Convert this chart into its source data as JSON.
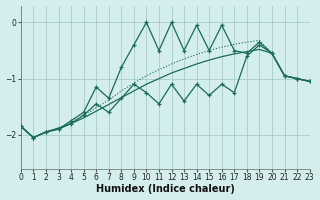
{
  "xlabel": "Humidex (Indice chaleur)",
  "bg_color": "#d4eded",
  "grid_color": "#a8cccc",
  "line_color": "#1a6b5a",
  "xlim": [
    0,
    23
  ],
  "ylim": [
    -2.6,
    0.3
  ],
  "yticks": [
    0,
    -1,
    -2
  ],
  "xticks": [
    0,
    1,
    2,
    3,
    4,
    5,
    6,
    7,
    8,
    9,
    10,
    11,
    12,
    13,
    14,
    15,
    16,
    17,
    18,
    19,
    20,
    21,
    22,
    23
  ],
  "x": [
    0,
    1,
    2,
    3,
    4,
    5,
    6,
    7,
    8,
    9,
    10,
    11,
    12,
    13,
    14,
    15,
    16,
    17,
    18,
    19,
    20,
    21,
    22,
    23
  ],
  "line_high_zigzag": [
    -1.85,
    -2.05,
    -1.95,
    -1.9,
    -1.75,
    -1.6,
    -1.15,
    -1.35,
    -0.8,
    -0.4,
    0.0,
    -0.5,
    0.0,
    -0.5,
    -0.05,
    -0.5,
    -0.05,
    -0.5,
    -0.55,
    -0.35,
    -0.55,
    -0.95,
    -1.0,
    -1.05
  ],
  "line_low_zigzag": [
    -1.85,
    -2.05,
    -1.95,
    -1.9,
    -1.8,
    -1.65,
    -1.45,
    -1.6,
    -1.35,
    -1.1,
    -1.25,
    -1.45,
    -1.1,
    -1.4,
    -1.1,
    -1.3,
    -1.1,
    -1.25,
    -0.6,
    -0.4,
    -0.55,
    -0.95,
    -1.0,
    -1.05
  ],
  "line_dotted": [
    -1.85,
    -2.05,
    -1.95,
    -1.88,
    -1.78,
    -1.66,
    -1.52,
    -1.38,
    -1.22,
    -1.08,
    -0.95,
    -0.84,
    -0.74,
    -0.65,
    -0.57,
    -0.5,
    -0.44,
    -0.39,
    -0.35,
    -0.32,
    -0.55,
    -0.95,
    -1.0,
    -1.05
  ],
  "line_solid": [
    -1.85,
    -2.05,
    -1.95,
    -1.88,
    -1.8,
    -1.7,
    -1.58,
    -1.46,
    -1.34,
    -1.22,
    -1.1,
    -1.0,
    -0.9,
    -0.82,
    -0.74,
    -0.67,
    -0.61,
    -0.56,
    -0.52,
    -0.48,
    -0.55,
    -0.95,
    -1.0,
    -1.05
  ]
}
